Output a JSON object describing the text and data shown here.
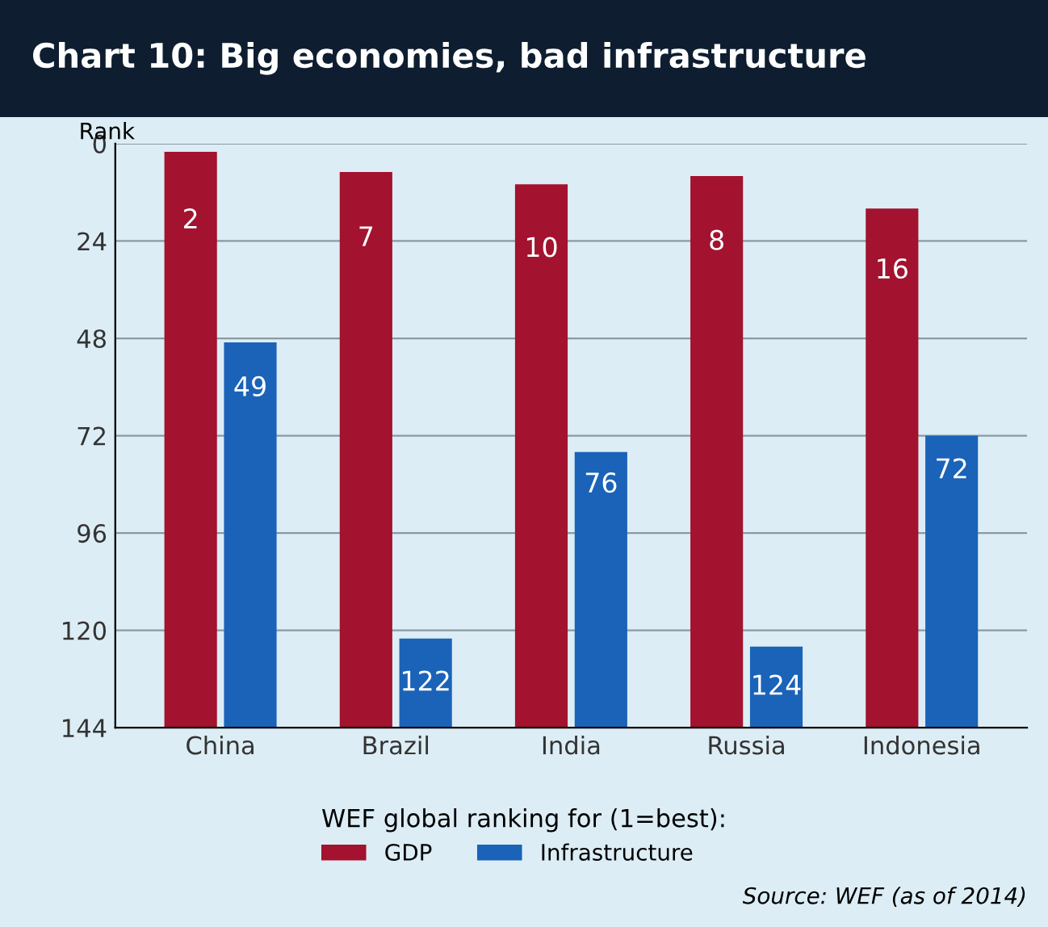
{
  "chart_data": {
    "type": "bar",
    "title": "Chart 10: Big economies, bad infrastructure",
    "ylabel": "Rank",
    "legend_title": "WEF global ranking for (1=best):",
    "categories": [
      "China",
      "Brazil",
      "India",
      "Russia",
      "Indonesia"
    ],
    "series": [
      {
        "name": "GDP",
        "color": "#a3122f",
        "base": [
          144,
          144,
          144,
          144,
          144
        ],
        "values": [
          -142,
          -137,
          -134,
          -136,
          -128
        ],
        "value_labels": [
          "2",
          "7",
          "10",
          "8",
          "16"
        ]
      },
      {
        "name": "Infrastructure",
        "color": "#1a63b8",
        "base": [
          144,
          144,
          144,
          144,
          144
        ],
        "values": [
          -95,
          -22,
          -68,
          -20,
          -72
        ],
        "value_labels": [
          "49",
          "122",
          "76",
          "124",
          "72"
        ]
      }
    ],
    "ylim": [
      144,
      0
    ],
    "yticks": [
      0,
      24,
      48,
      72,
      96,
      120,
      144
    ],
    "grid": "y",
    "legend": "bottom",
    "annotations": [
      "Source: WEF (as of 2014)"
    ]
  }
}
